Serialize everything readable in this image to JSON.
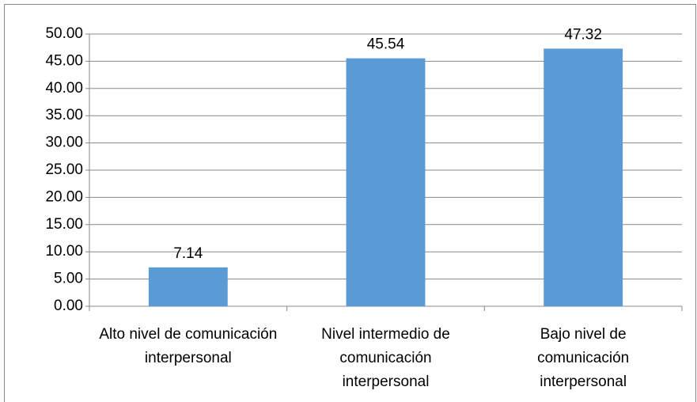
{
  "chart_data": {
    "type": "bar",
    "categories": [
      "Alto nivel de comunicación interpersonal",
      "Nivel intermedio de comunicación interpersonal",
      "Bajo nivel de comunicación interpersonal"
    ],
    "values": [
      7.14,
      45.54,
      47.32
    ],
    "color": "#5b9bd5",
    "ylim": [
      0,
      50
    ],
    "yticks": [
      {
        "value": 0,
        "label": "0.00"
      },
      {
        "value": 5,
        "label": "5.00"
      },
      {
        "value": 10,
        "label": "10.00"
      },
      {
        "value": 15,
        "label": "15.00"
      },
      {
        "value": 20,
        "label": "20.00"
      },
      {
        "value": 25,
        "label": "25.00"
      },
      {
        "value": 30,
        "label": "30.00"
      },
      {
        "value": 35,
        "label": "35.00"
      },
      {
        "value": 40,
        "label": "40.00"
      },
      {
        "value": 45,
        "label": "45.00"
      },
      {
        "value": 50,
        "label": "50.00"
      }
    ],
    "grid": true
  }
}
